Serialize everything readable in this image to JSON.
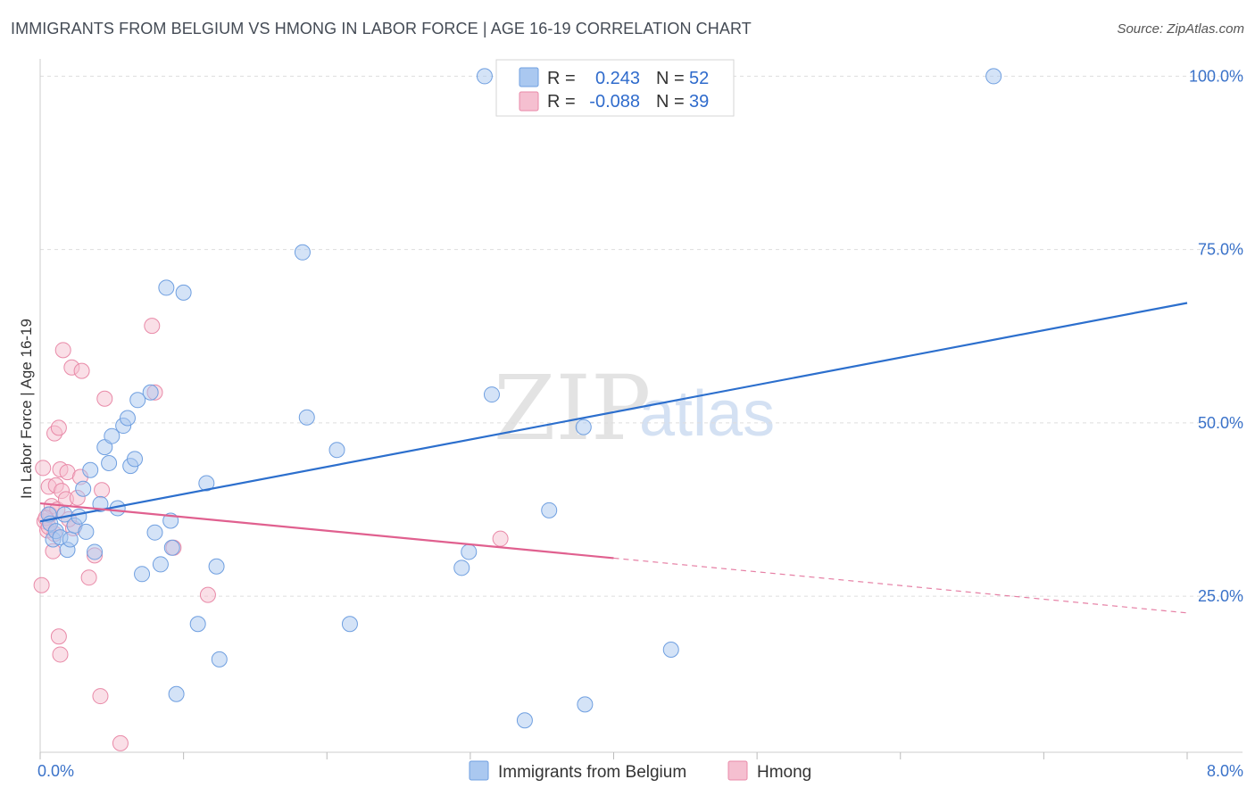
{
  "title": "IMMIGRANTS FROM BELGIUM VS HMONG IN LABOR FORCE | AGE 16-19 CORRELATION CHART",
  "source": "Source: ZipAtlas.com",
  "watermark": {
    "zip": "ZIP",
    "atlas": "atlas"
  },
  "colors": {
    "blue_fill": "#aac8f0",
    "blue_stroke": "#6f9fe0",
    "blue_line": "#2c6fcd",
    "pink_fill": "#f5bfd0",
    "pink_stroke": "#e98aa8",
    "pink_line": "#e0608f",
    "tick_text": "#3a72c9",
    "grid": "#dddddd"
  },
  "legend": {
    "rows": [
      {
        "r_label": "R =",
        "r_value": "0.243",
        "n_label": "N =",
        "n_value": "52",
        "series": "blue"
      },
      {
        "r_label": "R =",
        "r_value": "-0.088",
        "n_label": "N =",
        "n_value": "39",
        "series": "pink"
      }
    ]
  },
  "chart_data": {
    "type": "scatter",
    "title": "IMMIGRANTS FROM BELGIUM VS HMONG IN LABOR FORCE | AGE 16-19 CORRELATION CHART",
    "xlabel": "",
    "ylabel": "In Labor Force | Age 16-19",
    "xlim": [
      0,
      8
    ],
    "ylim": [
      2.5,
      102.5
    ],
    "x_tick_labels": [
      {
        "value": 0,
        "label": "0.0%"
      },
      {
        "value": 8,
        "label": "8.0%"
      }
    ],
    "y_tick_labels": [
      {
        "value": 25,
        "label": "25.0%"
      },
      {
        "value": 50,
        "label": "50.0%"
      },
      {
        "value": 75,
        "label": "75.0%"
      },
      {
        "value": 100,
        "label": "100.0%"
      }
    ],
    "grid": true,
    "legend_position": "top-center",
    "series": [
      {
        "name": "Immigrants from Belgium",
        "color": "blue",
        "R": 0.243,
        "N": 52,
        "trend": {
          "x0": 0.0,
          "y0": 35.8,
          "x1": 8.0,
          "y1": 67.3,
          "solid_until": 8.0
        },
        "points": [
          [
            0.06,
            36.8
          ],
          [
            0.07,
            35.5
          ],
          [
            0.09,
            33.2
          ],
          [
            0.11,
            34.4
          ],
          [
            0.14,
            33.5
          ],
          [
            0.17,
            36.8
          ],
          [
            0.19,
            31.7
          ],
          [
            0.21,
            33.2
          ],
          [
            0.24,
            35.2
          ],
          [
            0.27,
            36.5
          ],
          [
            0.3,
            40.5
          ],
          [
            0.32,
            34.3
          ],
          [
            0.35,
            43.2
          ],
          [
            0.38,
            31.4
          ],
          [
            0.42,
            38.3
          ],
          [
            0.45,
            46.5
          ],
          [
            0.48,
            44.2
          ],
          [
            0.5,
            48.1
          ],
          [
            0.54,
            37.7
          ],
          [
            0.58,
            49.6
          ],
          [
            0.61,
            50.7
          ],
          [
            0.63,
            43.8
          ],
          [
            0.66,
            44.8
          ],
          [
            0.68,
            53.3
          ],
          [
            0.71,
            28.2
          ],
          [
            0.77,
            54.4
          ],
          [
            0.8,
            34.2
          ],
          [
            0.84,
            29.6
          ],
          [
            0.88,
            69.5
          ],
          [
            0.91,
            35.9
          ],
          [
            0.92,
            32.0
          ],
          [
            0.95,
            10.9
          ],
          [
            1.0,
            68.8
          ],
          [
            1.1,
            21.0
          ],
          [
            1.16,
            41.3
          ],
          [
            1.23,
            29.3
          ],
          [
            1.25,
            15.9
          ],
          [
            1.83,
            74.6
          ],
          [
            1.86,
            50.8
          ],
          [
            2.07,
            46.1
          ],
          [
            2.16,
            21.0
          ],
          [
            2.94,
            29.1
          ],
          [
            2.99,
            31.4
          ],
          [
            3.1,
            100.0
          ],
          [
            3.15,
            54.1
          ],
          [
            3.38,
            7.1
          ],
          [
            3.55,
            37.4
          ],
          [
            3.63,
            100.0
          ],
          [
            3.79,
            49.4
          ],
          [
            3.8,
            9.4
          ],
          [
            4.4,
            17.3
          ],
          [
            6.65,
            100.0
          ]
        ]
      },
      {
        "name": "Hmong",
        "color": "pink",
        "R": -0.088,
        "N": 39,
        "trend": {
          "x0": 0.0,
          "y0": 38.4,
          "x1": 8.0,
          "y1": 22.6,
          "solid_until": 4.0
        },
        "points": [
          [
            0.01,
            26.6
          ],
          [
            0.02,
            43.5
          ],
          [
            0.03,
            35.8
          ],
          [
            0.05,
            34.5
          ],
          [
            0.06,
            40.8
          ],
          [
            0.07,
            36.8
          ],
          [
            0.08,
            38.0
          ],
          [
            0.09,
            31.5
          ],
          [
            0.1,
            48.5
          ],
          [
            0.11,
            41.0
          ],
          [
            0.12,
            37.5
          ],
          [
            0.13,
            49.3
          ],
          [
            0.14,
            43.3
          ],
          [
            0.15,
            40.2
          ],
          [
            0.13,
            19.2
          ],
          [
            0.14,
            16.6
          ],
          [
            0.16,
            60.5
          ],
          [
            0.18,
            39.0
          ],
          [
            0.19,
            42.9
          ],
          [
            0.22,
            58.0
          ],
          [
            0.23,
            34.8
          ],
          [
            0.26,
            39.2
          ],
          [
            0.28,
            42.2
          ],
          [
            0.29,
            57.5
          ],
          [
            0.34,
            27.7
          ],
          [
            0.38,
            30.9
          ],
          [
            0.42,
            10.6
          ],
          [
            0.43,
            40.3
          ],
          [
            0.45,
            53.5
          ],
          [
            0.56,
            3.8
          ],
          [
            0.78,
            64.0
          ],
          [
            0.8,
            54.4
          ],
          [
            0.93,
            32.0
          ],
          [
            1.17,
            25.2
          ],
          [
            3.21,
            33.3
          ],
          [
            0.04,
            36.3
          ],
          [
            0.1,
            34.0
          ],
          [
            0.2,
            36.1
          ],
          [
            0.06,
            35.0
          ]
        ]
      }
    ]
  }
}
